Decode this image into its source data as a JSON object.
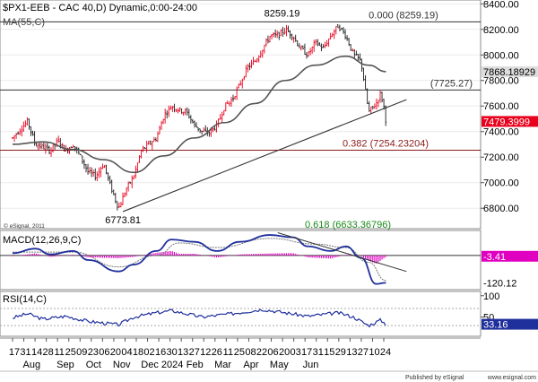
{
  "chart_data": [
    {
      "type": "candlestick",
      "title": "$PX1-EEB - CAC 40,D) Dynamic,0:00-24:00",
      "indicator_label": "MA(55,C)",
      "watermark": "© eSignal, 2011",
      "y_axis_ticks": [
        6800,
        7000,
        7200,
        7400,
        7600,
        7800,
        8000,
        8200,
        8400
      ],
      "ylim": [
        6640,
        8430
      ],
      "ytick_labels": [
        "6800.00",
        "7000.00",
        "7200.00",
        "7400.00",
        "7600.00",
        "7800.00",
        "8000.00",
        "8200.00",
        "8400.00"
      ],
      "x_tick_labels": [
        "17",
        "31",
        "14",
        "28",
        "11",
        "25",
        "09",
        "23",
        "06",
        "20",
        "04",
        "18",
        "02",
        "16",
        "30",
        "13",
        "27",
        "12",
        "26",
        "11",
        "25",
        "08",
        "22",
        "06",
        "20",
        "03",
        "17",
        "31",
        "15",
        "29",
        "13",
        "27",
        "10",
        "24"
      ],
      "month_labels": [
        "Aug",
        "Sep",
        "Oct",
        "Nov",
        "Dec",
        "2024",
        "Feb",
        "Mar",
        "Apr",
        "May",
        "Jun"
      ],
      "price_path": [
        [
          "2023-07-17",
          7350
        ],
        [
          "2023-07-24",
          7420
        ],
        [
          "2023-07-31",
          7480
        ],
        [
          "2023-08-07",
          7300
        ],
        [
          "2023-08-14",
          7280
        ],
        [
          "2023-08-21",
          7250
        ],
        [
          "2023-08-28",
          7330
        ],
        [
          "2023-09-04",
          7250
        ],
        [
          "2023-09-11",
          7300
        ],
        [
          "2023-09-18",
          7200
        ],
        [
          "2023-09-25",
          7080
        ],
        [
          "2023-10-02",
          7050
        ],
        [
          "2023-10-09",
          7150
        ],
        [
          "2023-10-16",
          6960
        ],
        [
          "2023-10-23",
          6800
        ],
        [
          "2023-10-30",
          6950
        ],
        [
          "2023-11-06",
          7050
        ],
        [
          "2023-11-13",
          7250
        ],
        [
          "2023-11-20",
          7300
        ],
        [
          "2023-11-27",
          7350
        ],
        [
          "2023-12-04",
          7530
        ],
        [
          "2023-12-11",
          7600
        ],
        [
          "2023-12-18",
          7570
        ],
        [
          "2023-12-25",
          7550
        ],
        [
          "2024-01-01",
          7450
        ],
        [
          "2024-01-08",
          7400
        ],
        [
          "2024-01-15",
          7390
        ],
        [
          "2024-01-22",
          7450
        ],
        [
          "2024-01-29",
          7600
        ],
        [
          "2024-02-05",
          7650
        ],
        [
          "2024-02-12",
          7770
        ],
        [
          "2024-02-19",
          7900
        ],
        [
          "2024-02-26",
          7950
        ],
        [
          "2024-03-04",
          8050
        ],
        [
          "2024-03-11",
          8150
        ],
        [
          "2024-03-18",
          8150
        ],
        [
          "2024-03-25",
          8200
        ],
        [
          "2024-04-01",
          8150
        ],
        [
          "2024-04-08",
          8050
        ],
        [
          "2024-04-15",
          8000
        ],
        [
          "2024-04-22",
          8100
        ],
        [
          "2024-04-29",
          8050
        ],
        [
          "2024-05-06",
          8150
        ],
        [
          "2024-05-13",
          8230
        ],
        [
          "2024-05-20",
          8150
        ],
        [
          "2024-05-27",
          8000
        ],
        [
          "2024-06-03",
          7950
        ],
        [
          "2024-06-10",
          7550
        ],
        [
          "2024-06-17",
          7620
        ],
        [
          "2024-06-21",
          7700
        ],
        [
          "2024-06-24",
          7600
        ],
        [
          "2024-06-26",
          7480
        ]
      ],
      "ma_path": [
        [
          "2023-07-17",
          7300
        ],
        [
          "2023-08-14",
          7320
        ],
        [
          "2023-09-11",
          7260
        ],
        [
          "2023-10-09",
          7180
        ],
        [
          "2023-11-06",
          7080
        ],
        [
          "2023-12-04",
          7210
        ],
        [
          "2024-01-01",
          7350
        ],
        [
          "2024-01-29",
          7470
        ],
        [
          "2024-02-26",
          7620
        ],
        [
          "2024-03-25",
          7800
        ],
        [
          "2024-04-22",
          7920
        ],
        [
          "2024-05-20",
          7990
        ],
        [
          "2024-06-10",
          7920
        ],
        [
          "2024-06-26",
          7869
        ]
      ],
      "horizontal_levels": [
        {
          "value": 8259.19,
          "label": "0.000 (8259.19)",
          "color": "#333333"
        },
        {
          "value": 7725.27,
          "label": "(7725.27)",
          "color": "#333333"
        },
        {
          "value": 7254.23204,
          "label": "0.382 (7254.23204)",
          "color": "#8b1a1a"
        }
      ],
      "fib_label_618": "0.618 (6633.36796)",
      "trendline": {
        "from": [
          "2023-10-27",
          6773.81
        ],
        "to": [
          "2024-07-15",
          7650
        ]
      },
      "annotations": [
        {
          "text": "8259.19",
          "x": "2024-03-22",
          "y": 8259.19
        },
        {
          "text": "6773.81",
          "x": "2023-10-27",
          "y": 6773.81
        }
      ],
      "last_values": [
        {
          "label": "7868.18929",
          "value": 7868.18929,
          "bg": "#dddddd",
          "fg": "#000000"
        },
        {
          "label": "7479.3999",
          "value": 7479.3999,
          "bg": "#e8001c",
          "fg": "#ffffff"
        }
      ],
      "colors": {
        "up": "#e8001c",
        "down": "#1a1a1a",
        "ma": "#555555",
        "fib382": "#8b1a1a",
        "fib618": "#1a8a1a",
        "bg": "#ffffff",
        "grid": "#ececec"
      }
    },
    {
      "type": "line",
      "title": "MACD(12,26,9,C)",
      "ylim": [
        -150,
        110
      ],
      "macd_path": [
        [
          "2023-07-17",
          10
        ],
        [
          "2023-08-07",
          30
        ],
        [
          "2023-08-21",
          5
        ],
        [
          "2023-09-11",
          20
        ],
        [
          "2023-09-25",
          -20
        ],
        [
          "2023-10-23",
          -70
        ],
        [
          "2023-11-06",
          -40
        ],
        [
          "2023-11-27",
          20
        ],
        [
          "2023-12-11",
          70
        ],
        [
          "2024-01-01",
          60
        ],
        [
          "2024-01-22",
          20
        ],
        [
          "2024-02-12",
          60
        ],
        [
          "2024-03-11",
          90
        ],
        [
          "2024-04-01",
          80
        ],
        [
          "2024-04-15",
          40
        ],
        [
          "2024-05-06",
          20
        ],
        [
          "2024-05-20",
          40
        ],
        [
          "2024-06-03",
          -10
        ],
        [
          "2024-06-17",
          -125
        ],
        [
          "2024-06-26",
          -120
        ]
      ],
      "signal_path": [
        [
          "2023-07-17",
          15
        ],
        [
          "2023-09-11",
          15
        ],
        [
          "2023-10-23",
          -50
        ],
        [
          "2023-11-27",
          0
        ],
        [
          "2023-12-18",
          55
        ],
        [
          "2024-01-22",
          35
        ],
        [
          "2024-03-11",
          75
        ],
        [
          "2024-04-22",
          50
        ],
        [
          "2024-05-20",
          35
        ],
        [
          "2024-06-10",
          -30
        ],
        [
          "2024-06-26",
          -110
        ]
      ],
      "trendline": {
        "from": [
          "2024-03-18",
          100
        ],
        "to": [
          "2024-07-15",
          -70
        ]
      },
      "last_values": [
        {
          "label": "-3.41",
          "value": -3.41,
          "bg": "#e000c0",
          "fg": "#ffffff"
        },
        {
          "label": "-120.12",
          "value": -120.12,
          "bg": "#ffffff",
          "fg": "#000000"
        }
      ],
      "colors": {
        "macd": "#1f2f9c",
        "signal": "#777777",
        "hist": "#e000c0"
      }
    },
    {
      "type": "line",
      "title": "RSI(14,C)",
      "ylim": [
        5,
        110
      ],
      "ytick_labels": [
        "100",
        "50"
      ],
      "ref_levels": [
        70,
        30
      ],
      "rsi_path": [
        [
          "2023-07-17",
          48
        ],
        [
          "2023-07-31",
          58
        ],
        [
          "2023-08-14",
          45
        ],
        [
          "2023-09-04",
          52
        ],
        [
          "2023-09-25",
          40
        ],
        [
          "2023-10-23",
          32
        ],
        [
          "2023-11-06",
          50
        ],
        [
          "2023-11-27",
          60
        ],
        [
          "2023-12-11",
          65
        ],
        [
          "2024-01-08",
          50
        ],
        [
          "2024-02-05",
          58
        ],
        [
          "2024-03-04",
          68
        ],
        [
          "2024-03-25",
          60
        ],
        [
          "2024-04-15",
          52
        ],
        [
          "2024-05-13",
          60
        ],
        [
          "2024-05-27",
          50
        ],
        [
          "2024-06-10",
          30
        ],
        [
          "2024-06-21",
          43
        ],
        [
          "2024-06-26",
          33.16
        ]
      ],
      "last_values": [
        {
          "label": "33.16",
          "value": 33.16,
          "bg": "#1f2f9c",
          "fg": "#ffffff"
        }
      ],
      "colors": {
        "rsi": "#1f2f9c"
      }
    }
  ],
  "footer": {
    "published": "Published by eSignal",
    "site": "www.esignal.com"
  }
}
